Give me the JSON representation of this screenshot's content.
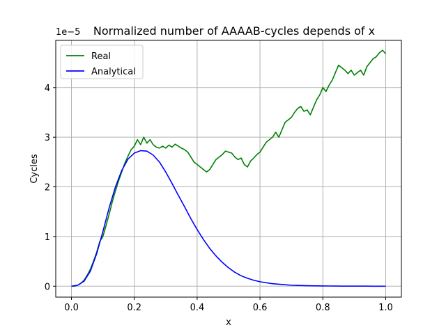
{
  "chart_data": {
    "type": "line",
    "title": "Normalized number of AAAAB-cycles depends of x",
    "xlabel": "x",
    "ylabel": "Cycles",
    "y_offset_text": "1e−5",
    "xlim": [
      -0.05,
      1.05
    ],
    "ylim": [
      -0.22,
      4.95
    ],
    "xticks": [
      0.0,
      0.2,
      0.4,
      0.6,
      0.8,
      1.0
    ],
    "xtick_labels": [
      "0.0",
      "0.2",
      "0.4",
      "0.6",
      "0.8",
      "1.0"
    ],
    "yticks": [
      0,
      1,
      2,
      3,
      4
    ],
    "ytick_labels": [
      "0",
      "1",
      "2",
      "3",
      "4"
    ],
    "grid": true,
    "legend_position": "upper-left",
    "series": [
      {
        "name": "Real",
        "color": "#008000",
        "x": [
          0.0,
          0.01,
          0.02,
          0.03,
          0.04,
          0.05,
          0.06,
          0.07,
          0.08,
          0.09,
          0.1,
          0.11,
          0.12,
          0.13,
          0.14,
          0.15,
          0.16,
          0.17,
          0.18,
          0.19,
          0.2,
          0.21,
          0.22,
          0.23,
          0.24,
          0.25,
          0.26,
          0.27,
          0.28,
          0.29,
          0.3,
          0.31,
          0.32,
          0.33,
          0.34,
          0.35,
          0.36,
          0.37,
          0.38,
          0.39,
          0.4,
          0.41,
          0.42,
          0.43,
          0.44,
          0.45,
          0.46,
          0.47,
          0.48,
          0.49,
          0.5,
          0.51,
          0.52,
          0.53,
          0.54,
          0.55,
          0.56,
          0.57,
          0.58,
          0.59,
          0.6,
          0.61,
          0.62,
          0.63,
          0.64,
          0.65,
          0.66,
          0.67,
          0.68,
          0.69,
          0.7,
          0.71,
          0.72,
          0.73,
          0.74,
          0.75,
          0.76,
          0.77,
          0.78,
          0.79,
          0.8,
          0.81,
          0.82,
          0.83,
          0.84,
          0.85,
          0.86,
          0.87,
          0.88,
          0.89,
          0.9,
          0.91,
          0.92,
          0.93,
          0.94,
          0.95,
          0.96,
          0.97,
          0.98,
          0.99,
          1.0
        ],
        "y": [
          0.0,
          0.0,
          0.02,
          0.06,
          0.12,
          0.22,
          0.34,
          0.5,
          0.68,
          0.9,
          1.0,
          1.22,
          1.45,
          1.7,
          1.92,
          2.12,
          2.3,
          2.48,
          2.62,
          2.75,
          2.82,
          2.95,
          2.85,
          3.0,
          2.88,
          2.95,
          2.85,
          2.8,
          2.78,
          2.82,
          2.78,
          2.84,
          2.8,
          2.86,
          2.82,
          2.78,
          2.75,
          2.7,
          2.6,
          2.5,
          2.45,
          2.4,
          2.35,
          2.3,
          2.35,
          2.45,
          2.55,
          2.6,
          2.65,
          2.72,
          2.7,
          2.68,
          2.6,
          2.55,
          2.58,
          2.45,
          2.4,
          2.52,
          2.58,
          2.65,
          2.7,
          2.8,
          2.9,
          2.95,
          3.0,
          3.1,
          3.0,
          3.15,
          3.3,
          3.35,
          3.4,
          3.5,
          3.58,
          3.62,
          3.52,
          3.55,
          3.45,
          3.6,
          3.75,
          3.85,
          4.0,
          3.92,
          4.05,
          4.15,
          4.3,
          4.45,
          4.4,
          4.35,
          4.28,
          4.35,
          4.25,
          4.3,
          4.35,
          4.25,
          4.42,
          4.5,
          4.58,
          4.62,
          4.7,
          4.75,
          4.68
        ]
      },
      {
        "name": "Analytical",
        "color": "#0000ff",
        "x": [
          0.0,
          0.02,
          0.04,
          0.06,
          0.08,
          0.1,
          0.12,
          0.14,
          0.16,
          0.18,
          0.2,
          0.22,
          0.24,
          0.26,
          0.28,
          0.3,
          0.32,
          0.34,
          0.36,
          0.38,
          0.4,
          0.42,
          0.44,
          0.46,
          0.48,
          0.5,
          0.52,
          0.54,
          0.56,
          0.58,
          0.6,
          0.62,
          0.64,
          0.66,
          0.68,
          0.7,
          0.72,
          0.74,
          0.76,
          0.78,
          0.8,
          0.82,
          0.84,
          0.86,
          0.88,
          0.9,
          0.92,
          0.94,
          0.96,
          0.98,
          1.0
        ],
        "y": [
          0.0,
          0.02,
          0.1,
          0.3,
          0.65,
          1.1,
          1.58,
          2.0,
          2.33,
          2.56,
          2.68,
          2.73,
          2.72,
          2.64,
          2.5,
          2.3,
          2.07,
          1.83,
          1.6,
          1.36,
          1.14,
          0.94,
          0.76,
          0.61,
          0.48,
          0.37,
          0.28,
          0.21,
          0.16,
          0.12,
          0.09,
          0.07,
          0.05,
          0.04,
          0.03,
          0.02,
          0.015,
          0.012,
          0.009,
          0.007,
          0.005,
          0.004,
          0.003,
          0.002,
          0.002,
          0.001,
          0.001,
          0.001,
          0.0,
          0.0,
          0.0
        ]
      }
    ]
  }
}
